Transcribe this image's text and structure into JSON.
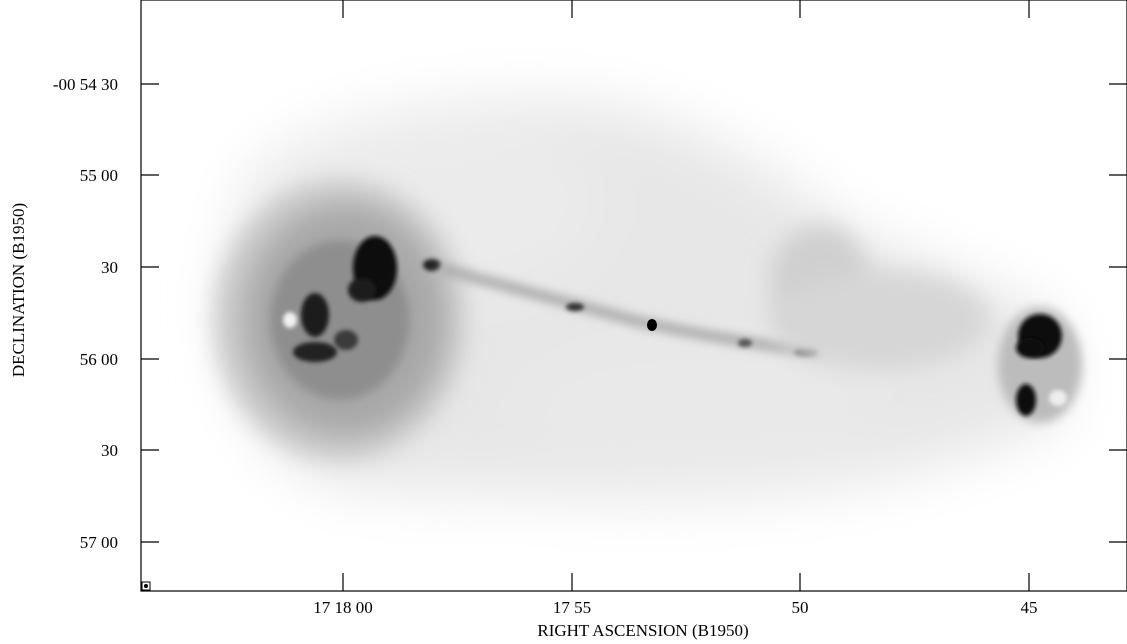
{
  "x_axis": {
    "title": "RIGHT ASCENSION (B1950)",
    "ticks": [
      "17 18 00",
      "17 55",
      "50",
      "45"
    ]
  },
  "y_axis": {
    "title": "DECLINATION (B1950)",
    "ticks": [
      "-00 54 30",
      "55 00",
      "30",
      "56 00",
      "30",
      "57 00"
    ]
  },
  "image": {
    "subject": "radio galaxy with two lobes and a central jet",
    "colormap": "grayscale-inverted"
  }
}
